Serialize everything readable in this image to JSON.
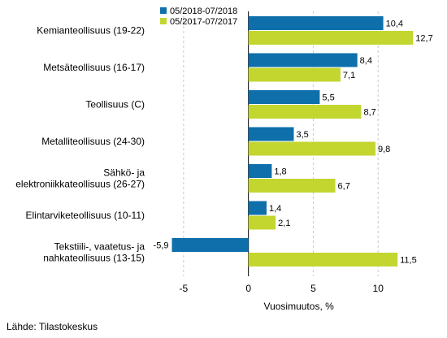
{
  "chart_data": {
    "type": "bar",
    "orientation": "horizontal",
    "categories": [
      [
        "Kemianteollisuus (19-22)"
      ],
      [
        "Metsäteollisuus (16-17)"
      ],
      [
        "Teollisuus (C)"
      ],
      [
        "Metalliteollisuus (24-30)"
      ],
      [
        "Sähkö- ja",
        "elektroniikkateollisuus (26-27)"
      ],
      [
        "Elintarviketeollisuus (10-11)"
      ],
      [
        "Tekstiili-, vaatetus- ja",
        "nahkateollisuus (13-15)"
      ]
    ],
    "series": [
      {
        "name": "05/2018-07/2018",
        "color": "#0e6fab",
        "values": [
          10.4,
          8.4,
          5.5,
          3.5,
          1.8,
          1.4,
          -5.9
        ],
        "labels": [
          "10,4",
          "8,4",
          "5,5",
          "3,5",
          "1,8",
          "1,4",
          "-5,9"
        ]
      },
      {
        "name": "05/2017-07/2017",
        "color": "#c3d630",
        "values": [
          12.7,
          7.1,
          8.7,
          9.8,
          6.7,
          2.1,
          11.5
        ],
        "labels": [
          "12,7",
          "7,1",
          "8,7",
          "9,8",
          "6,7",
          "2,1",
          "11,5"
        ]
      }
    ],
    "xlim": [
      -7.5,
      14.5
    ],
    "xticks": [
      -5,
      0,
      5,
      10
    ],
    "xtick_labels": [
      "-5",
      "0",
      "5",
      "10"
    ],
    "xlabel": "Vuosimuutos, %",
    "grid": "vertical dashed",
    "legend_position": "top"
  },
  "source": "Lähde: Tilastokeskus"
}
